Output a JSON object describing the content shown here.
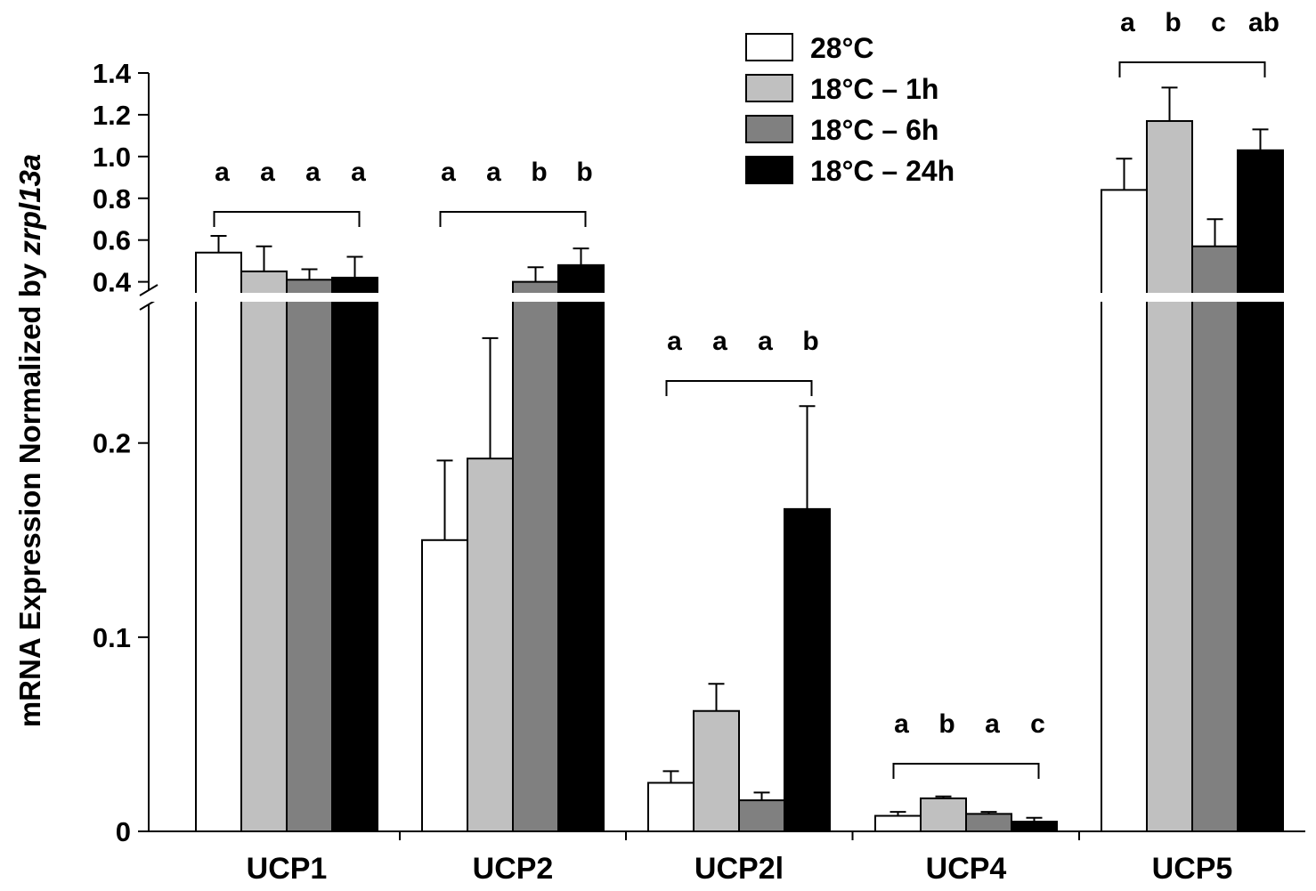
{
  "chart_data": {
    "type": "bar",
    "ylabel_prefix": "mRNA Expression Normalized by ",
    "ylabel_italic": "zrpl13a",
    "categories": [
      "UCP1",
      "UCP2",
      "UCP2l",
      "UCP4",
      "UCP5"
    ],
    "y_broken": true,
    "y_lower": {
      "range": [
        0,
        0.27
      ],
      "ticks": [
        0,
        0.1,
        0.2
      ],
      "tick_labels": [
        "0",
        "0.1",
        "0.2"
      ]
    },
    "y_upper": {
      "range": [
        0.36,
        1.4
      ],
      "ticks": [
        0.4,
        0.6,
        0.8,
        1.0,
        1.2,
        1.4
      ],
      "tick_labels": [
        "0.4",
        "0.6",
        "0.8",
        "1.0",
        "1.2",
        "1.4"
      ]
    },
    "series": [
      {
        "name": "28°C",
        "color": "#ffffff",
        "values": [
          0.54,
          0.15,
          0.025,
          0.008,
          0.84
        ],
        "errors": [
          0.08,
          0.041,
          0.006,
          0.002,
          0.15
        ]
      },
      {
        "name": "18°C – 1h",
        "color": "#c0c0c0",
        "values": [
          0.45,
          0.192,
          0.062,
          0.017,
          1.17
        ],
        "errors": [
          0.12,
          0.062,
          0.014,
          0.001,
          0.16
        ]
      },
      {
        "name": "18°C – 6h",
        "color": "#808080",
        "values": [
          0.41,
          0.4,
          0.016,
          0.009,
          0.57
        ],
        "errors": [
          0.05,
          0.07,
          0.004,
          0.001,
          0.13
        ]
      },
      {
        "name": "18°C – 24h",
        "color": "#000000",
        "values": [
          0.42,
          0.48,
          0.166,
          0.005,
          1.03
        ],
        "errors": [
          0.1,
          0.08,
          0.053,
          0.002,
          0.1
        ]
      }
    ],
    "significance": [
      [
        "a",
        "a",
        "a",
        "a"
      ],
      [
        "a",
        "a",
        "b",
        "b"
      ],
      [
        "a",
        "a",
        "a",
        "b"
      ],
      [
        "a",
        "b",
        "a",
        "c"
      ],
      [
        "a",
        "b",
        "c",
        "ab"
      ]
    ],
    "legend_position": "top-center"
  }
}
